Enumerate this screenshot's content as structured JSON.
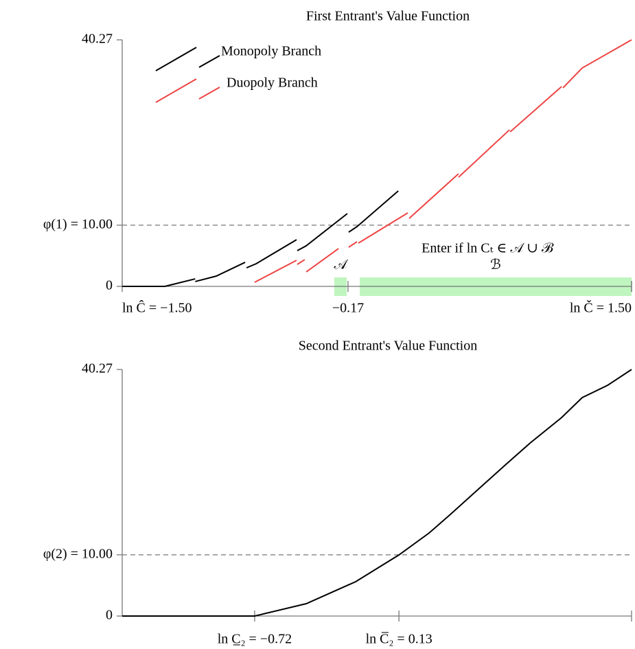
{
  "chart_data": [
    {
      "type": "line",
      "title": "First Entrant's Value Function",
      "xlim": [
        -1.5,
        1.5
      ],
      "ylim": [
        0,
        40.27
      ],
      "xticks": [
        {
          "value": -1.5,
          "label": "ln Ĉ = −1.50"
        },
        {
          "value": -0.17,
          "label": "−0.17"
        },
        {
          "value": 1.5,
          "label": "ln Č = 1.50"
        }
      ],
      "yticks": [
        0,
        {
          "value": 10,
          "label": "φ(1) = 10.00"
        },
        40.27
      ],
      "series": [
        {
          "name": "Monopoly Branch",
          "color": "#000000",
          "x": [
            -1.5,
            -1.249,
            -1.07,
            null,
            -1.07,
            -0.946,
            -0.776,
            null,
            -0.768,
            -0.711,
            -0.473,
            null,
            -0.469,
            -0.417,
            -0.174,
            null,
            -0.166,
            -0.117,
            0.126
          ],
          "values": [
            0,
            0,
            1.23,
            null,
            0.79,
            1.68,
            3.93,
            null,
            3.03,
            3.7,
            7.63,
            null,
            5.83,
            6.62,
            11.89,
            null,
            8.86,
            9.76,
            15.59
          ]
        },
        {
          "name": "Duopoly Branch",
          "color": "#ee4444",
          "x": [
            -0.72,
            -0.473,
            null,
            -0.469,
            -0.425,
            null,
            -0.416,
            -0.226,
            null,
            -0.166,
            -0.117,
            null,
            -0.109,
            0.182,
            null,
            0.19,
            0.481,
            null,
            0.481,
            0.781,
            null,
            0.785,
            1.088,
            null,
            1.096,
            1.209,
            1.5
          ],
          "values": [
            0.67,
            4.26,
            null,
            3.59,
            4.37,
            null,
            2.36,
            6.17,
            null,
            6.39,
            7.29,
            null,
            7.07,
            12.0,
            null,
            11.1,
            18.4,
            null,
            17.83,
            25.57,
            null,
            25.24,
            32.64,
            null,
            32.42,
            35.67,
            40.27
          ]
        }
      ],
      "regions": [
        {
          "label": "𝒜",
          "xlim": [
            -0.251,
            -0.178
          ]
        },
        {
          "label": "ℬ",
          "xlim": [
            -0.101,
            1.5
          ]
        }
      ],
      "region_color": "#bff5bf",
      "annotation": "Enter if ln Cₜ ∈ 𝒜 ∪ ℬ"
    },
    {
      "type": "line",
      "title": "Second Entrant's Value Function",
      "xlim": [
        -1.5,
        1.5
      ],
      "ylim": [
        0,
        40.27
      ],
      "xticks": [
        {
          "value": -0.72,
          "label": "ln C̲₂ = −0.72"
        },
        {
          "value": 0.13,
          "label": "ln C̅₂ = 0.13"
        }
      ],
      "yticks": [
        0,
        {
          "value": 10,
          "label": "φ(2) = 10.00"
        },
        40.27
      ],
      "color": "#000000",
      "x": [
        -1.5,
        -0.72,
        -0.416,
        -0.125,
        0.13,
        0.308,
        0.433,
        0.599,
        0.761,
        0.903,
        1.088,
        1.209,
        1.359,
        1.5
      ],
      "values": [
        0,
        0,
        2.02,
        5.61,
        9.98,
        13.57,
        16.6,
        20.75,
        24.79,
        28.27,
        32.42,
        35.67,
        37.69,
        40.27
      ]
    }
  ]
}
